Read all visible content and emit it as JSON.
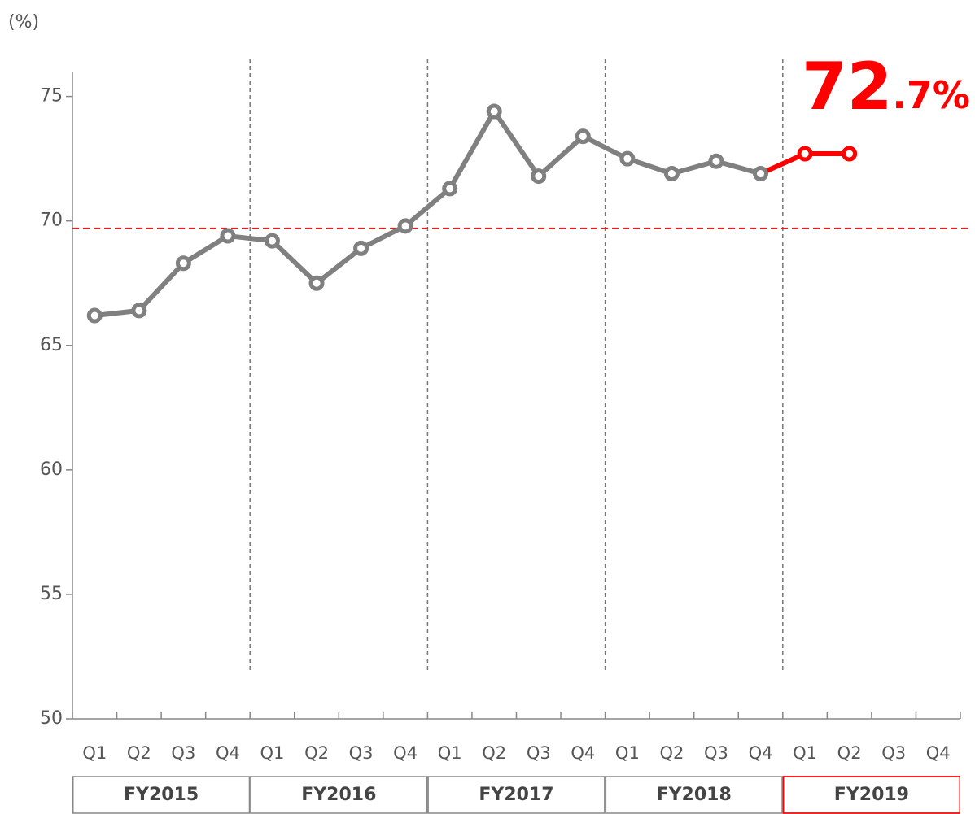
{
  "chart_data": {
    "type": "line",
    "y_label": "(%)",
    "categories": [
      "Q1",
      "Q2",
      "Q3",
      "Q4",
      "Q1",
      "Q2",
      "Q3",
      "Q4",
      "Q1",
      "Q2",
      "Q3",
      "Q4",
      "Q1",
      "Q2",
      "Q3",
      "Q4",
      "Q1",
      "Q2",
      "Q3",
      "Q4"
    ],
    "fiscal_years": [
      {
        "label": "FY2015",
        "color": "#888888"
      },
      {
        "label": "FY2016",
        "color": "#888888"
      },
      {
        "label": "FY2017",
        "color": "#888888"
      },
      {
        "label": "FY2018",
        "color": "#888888"
      },
      {
        "label": "FY2019",
        "color": "#ff0000"
      }
    ],
    "series": [
      {
        "color": "#808080",
        "values": [
          66.2,
          66.4,
          68.3,
          69.4,
          69.2,
          67.5,
          68.9,
          69.8,
          71.3,
          74.4,
          71.8,
          73.4,
          72.5,
          71.9,
          72.4,
          71.9,
          null,
          null,
          null,
          null
        ]
      },
      {
        "color": "#ff0000",
        "values": [
          null,
          null,
          null,
          null,
          null,
          null,
          null,
          null,
          null,
          null,
          null,
          null,
          null,
          null,
          null,
          null,
          72.7,
          72.7,
          null,
          null
        ]
      }
    ],
    "annotation": "72.7%",
    "annotation_color": "#ff0000",
    "reference_line": {
      "value": 69.7,
      "color": "#e02020"
    },
    "ylim": [
      50,
      76
    ],
    "yticks": [
      50,
      55,
      60,
      65,
      70,
      75
    ]
  }
}
